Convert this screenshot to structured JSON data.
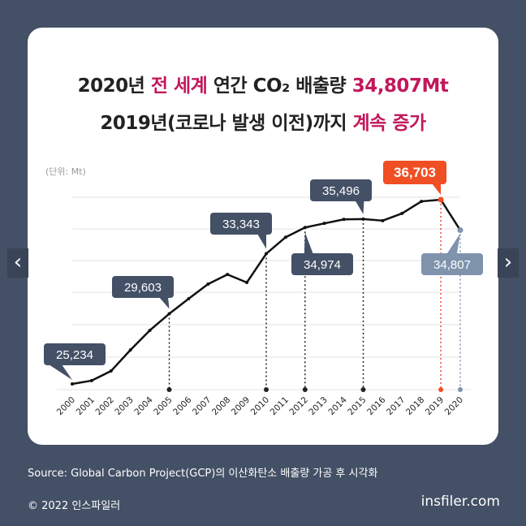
{
  "title": {
    "line1_a": "2020년 ",
    "line1_hl1": "전 세계",
    "line1_b": " 연간 CO₂ 배출량 ",
    "line1_hl2": "34,807Mt",
    "line2_a": "2019년(코로나 발생 이전)까지 ",
    "line2_hl": "계속 증가"
  },
  "unit_label": "(단위: Mt)",
  "source": "Source: Global Carbon Project(GCP)의 이산화탄소 배출량 가공 후 시각화",
  "copyright": "© 2022 인스파일러",
  "site": "insfiler.com",
  "nav": {
    "prev": "‹",
    "next": "›"
  },
  "colors": {
    "background": "#435066",
    "line": "#111111",
    "callout": "#435066",
    "highlight": "#f04e23",
    "last": "#7f93ad",
    "accent": "#c2185b"
  },
  "chart_data": {
    "type": "line",
    "title": "2020년 전 세계 연간 CO₂ 배출량 34,807Mt",
    "ylabel": "(단위: Mt)",
    "x": [
      "2000",
      "2001",
      "2002",
      "2003",
      "2004",
      "2005",
      "2006",
      "2007",
      "2008",
      "2009",
      "2010",
      "2011",
      "2012",
      "2013",
      "2014",
      "2015",
      "2016",
      "2017",
      "2018",
      "2019",
      "2020"
    ],
    "values": [
      25234,
      25440,
      26040,
      27350,
      28570,
      29603,
      30540,
      31450,
      32050,
      31550,
      33343,
      34370,
      34974,
      35230,
      35480,
      35496,
      35400,
      35850,
      36600,
      36703,
      34807
    ],
    "ylim": [
      25000,
      37200
    ],
    "grid": true,
    "labels": [
      {
        "year": "2000",
        "text": "25,234",
        "style": "normal",
        "pos": "above"
      },
      {
        "year": "2005",
        "text": "29,603",
        "style": "normal",
        "pos": "above"
      },
      {
        "year": "2010",
        "text": "33,343",
        "style": "normal",
        "pos": "above"
      },
      {
        "year": "2012",
        "text": "34,974",
        "style": "normal",
        "pos": "below"
      },
      {
        "year": "2015",
        "text": "35,496",
        "style": "normal",
        "pos": "above"
      },
      {
        "year": "2019",
        "text": "36,703",
        "style": "highlight",
        "pos": "above"
      },
      {
        "year": "2020",
        "text": "34,807",
        "style": "last",
        "pos": "below"
      }
    ]
  }
}
